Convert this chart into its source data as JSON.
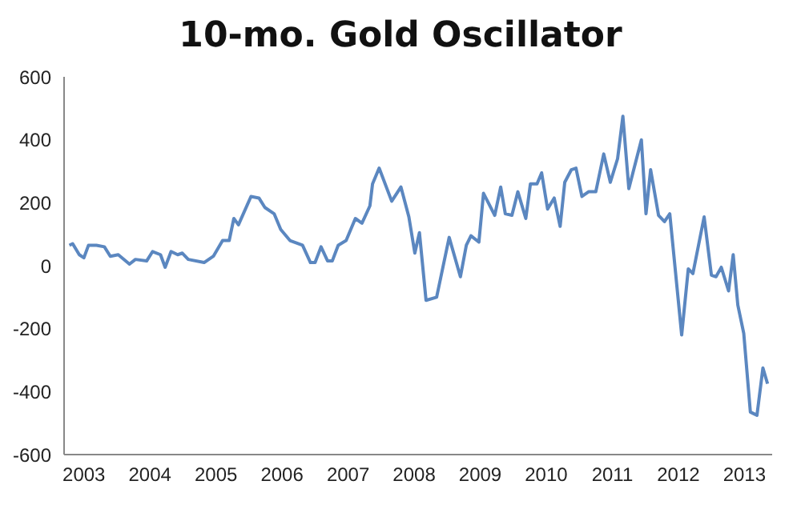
{
  "chart_data": {
    "type": "line",
    "title": "10-mo. Gold Oscillator",
    "x": [
      2003.28,
      2003.33,
      2003.43,
      2003.5,
      2003.57,
      2003.69,
      2003.81,
      2003.9,
      2004.02,
      2004.19,
      2004.28,
      2004.45,
      2004.54,
      2004.66,
      2004.73,
      2004.82,
      2004.92,
      2004.99,
      2005.08,
      2005.32,
      2005.46,
      2005.6,
      2005.7,
      2005.77,
      2005.84,
      2006.03,
      2006.15,
      2006.24,
      2006.38,
      2006.48,
      2006.62,
      2006.81,
      2006.93,
      2007.0,
      2007.09,
      2007.19,
      2007.26,
      2007.35,
      2007.47,
      2007.61,
      2007.71,
      2007.83,
      2007.87,
      2007.97,
      2008.16,
      2008.3,
      2008.42,
      2008.51,
      2008.58,
      2008.68,
      2008.84,
      2009.03,
      2009.2,
      2009.29,
      2009.36,
      2009.48,
      2009.55,
      2009.72,
      2009.81,
      2009.88,
      2009.98,
      2010.07,
      2010.19,
      2010.26,
      2010.36,
      2010.43,
      2010.52,
      2010.62,
      2010.71,
      2010.78,
      2010.88,
      2010.95,
      2011.04,
      2011.14,
      2011.25,
      2011.37,
      2011.47,
      2011.58,
      2011.66,
      2011.75,
      2011.94,
      2012.01,
      2012.08,
      2012.2,
      2012.29,
      2012.37,
      2012.55,
      2012.65,
      2012.72,
      2012.89,
      2013.0,
      2013.07,
      2013.15,
      2013.26,
      2013.33,
      2013.4,
      2013.49,
      2013.59,
      2013.69,
      2013.78,
      2013.85
    ],
    "series": [
      {
        "color": "#5b87c0",
        "values": [
          65,
          70,
          35,
          25,
          65,
          65,
          60,
          30,
          35,
          5,
          20,
          15,
          45,
          35,
          -5,
          45,
          35,
          40,
          20,
          10,
          30,
          80,
          80,
          150,
          130,
          220,
          215,
          185,
          165,
          115,
          80,
          65,
          10,
          10,
          60,
          15,
          15,
          65,
          80,
          150,
          135,
          190,
          260,
          310,
          205,
          250,
          155,
          40,
          105,
          -110,
          -100,
          90,
          -35,
          65,
          95,
          75,
          230,
          160,
          250,
          165,
          160,
          235,
          150,
          260,
          260,
          295,
          180,
          215,
          125,
          265,
          305,
          310,
          220,
          235,
          235,
          355,
          265,
          340,
          475,
          245,
          400,
          165,
          305,
          160,
          140,
          165,
          -220,
          -10,
          -25,
          155,
          -30,
          -35,
          -5,
          -80,
          35,
          -125,
          -215,
          -465,
          -475,
          -325,
          -375
        ]
      }
    ],
    "xlim": [
      2003.2,
      2013.92
    ],
    "xticks": [
      {
        "value": 2003.5,
        "label": "2003"
      },
      {
        "value": 2004.5,
        "label": "2004"
      },
      {
        "value": 2005.5,
        "label": "2005"
      },
      {
        "value": 2006.5,
        "label": "2006"
      },
      {
        "value": 2007.5,
        "label": "2007"
      },
      {
        "value": 2008.5,
        "label": "2008"
      },
      {
        "value": 2009.5,
        "label": "2009"
      },
      {
        "value": 2010.5,
        "label": "2010"
      },
      {
        "value": 2011.5,
        "label": "2011"
      },
      {
        "value": 2012.5,
        "label": "2012"
      },
      {
        "value": 2013.5,
        "label": "2013"
      }
    ],
    "ylim": [
      -600,
      600
    ],
    "yticks": [
      -600,
      -400,
      -200,
      0,
      200,
      400,
      600
    ],
    "grid": false,
    "legend": false,
    "marker": "none",
    "line_style": "solid"
  }
}
